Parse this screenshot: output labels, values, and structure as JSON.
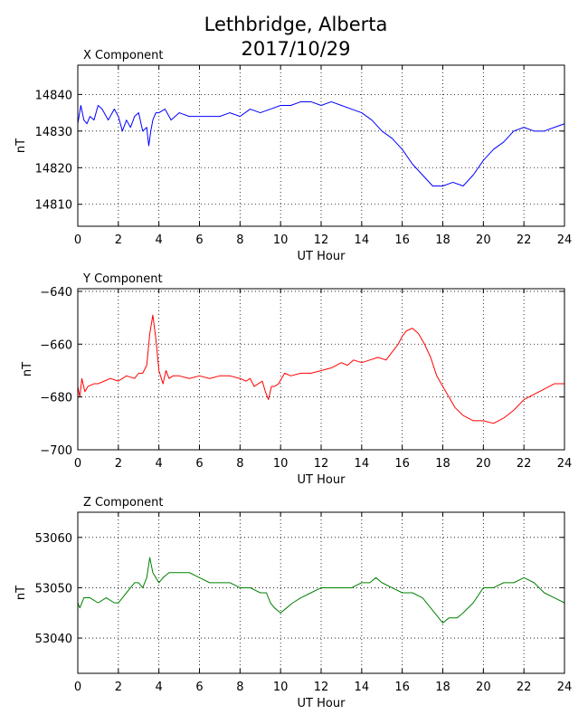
{
  "title_line1": "Lethbridge, Alberta",
  "title_line2": "2017/10/29",
  "chart_data": [
    {
      "type": "line",
      "title": "X Component",
      "xlabel": "UT Hour",
      "ylabel": "nT",
      "xlim": [
        0,
        24
      ],
      "ylim": [
        14804,
        14848
      ],
      "xticks": [
        0,
        2,
        4,
        6,
        8,
        10,
        12,
        14,
        16,
        18,
        20,
        22,
        24
      ],
      "yticks": [
        14810,
        14820,
        14830,
        14840
      ],
      "grid": true,
      "color": "#0000ff",
      "x": [
        0,
        0.15,
        0.3,
        0.45,
        0.6,
        0.8,
        1.0,
        1.2,
        1.5,
        1.8,
        2.0,
        2.2,
        2.4,
        2.6,
        2.8,
        3.0,
        3.2,
        3.4,
        3.5,
        3.6,
        3.7,
        3.85,
        4.0,
        4.3,
        4.6,
        5.0,
        5.5,
        6.0,
        6.5,
        7.0,
        7.5,
        8.0,
        8.5,
        9.0,
        9.5,
        10.0,
        10.5,
        11.0,
        11.5,
        12.0,
        12.5,
        13.0,
        13.5,
        14.0,
        14.5,
        15.0,
        15.5,
        16.0,
        16.5,
        17.0,
        17.5,
        18.0,
        18.5,
        19.0,
        19.5,
        20.0,
        20.5,
        21.0,
        21.5,
        22.0,
        22.5,
        23.0,
        23.5,
        24.0
      ],
      "y": [
        14832,
        14837,
        14833,
        14832,
        14834,
        14833,
        14837,
        14836,
        14833,
        14836,
        14834,
        14830,
        14833,
        14831,
        14834,
        14835,
        14830,
        14831,
        14826,
        14830,
        14833,
        14835,
        14835,
        14836,
        14833,
        14835,
        14834,
        14834,
        14834,
        14834,
        14835,
        14834,
        14836,
        14835,
        14836,
        14837,
        14837,
        14838,
        14838,
        14837,
        14838,
        14837,
        14836,
        14835,
        14833,
        14830,
        14828,
        14825,
        14821,
        14818,
        14815,
        14815,
        14816,
        14815,
        14818,
        14822,
        14825,
        14827,
        14830,
        14831,
        14830,
        14830,
        14831,
        14832
      ]
    },
    {
      "type": "line",
      "title": "Y Component",
      "xlabel": "UT Hour",
      "ylabel": "nT",
      "xlim": [
        0,
        24
      ],
      "ylim": [
        -700,
        -639
      ],
      "xticks": [
        0,
        2,
        4,
        6,
        8,
        10,
        12,
        14,
        16,
        18,
        20,
        22,
        24
      ],
      "yticks": [
        -640,
        -660,
        -680,
        -700
      ],
      "grid": true,
      "color": "#ff0000",
      "x": [
        0,
        0.1,
        0.2,
        0.35,
        0.5,
        0.8,
        1.0,
        1.3,
        1.6,
        2.0,
        2.4,
        2.8,
        3.0,
        3.2,
        3.4,
        3.55,
        3.7,
        3.85,
        4.0,
        4.2,
        4.35,
        4.5,
        4.7,
        5.0,
        5.5,
        6.0,
        6.5,
        7.0,
        7.5,
        8.0,
        8.3,
        8.5,
        8.7,
        8.9,
        9.1,
        9.25,
        9.4,
        9.55,
        9.7,
        9.9,
        10.2,
        10.5,
        11.0,
        11.5,
        12.0,
        12.5,
        13.0,
        13.3,
        13.6,
        14.0,
        14.4,
        14.8,
        15.2,
        15.5,
        15.8,
        16.0,
        16.2,
        16.5,
        16.8,
        17.1,
        17.4,
        17.7,
        18.0,
        18.3,
        18.6,
        19.0,
        19.5,
        20.0,
        20.5,
        21.0,
        21.5,
        22.0,
        22.5,
        23.0,
        23.5,
        24.0
      ],
      "y": [
        -676,
        -680,
        -673,
        -678,
        -676,
        -675,
        -675,
        -674,
        -673,
        -674,
        -672,
        -673,
        -671,
        -671,
        -668,
        -656,
        -649,
        -658,
        -670,
        -675,
        -670,
        -673,
        -672,
        -672,
        -673,
        -672,
        -673,
        -672,
        -672,
        -673,
        -674,
        -673,
        -676,
        -675,
        -674,
        -678,
        -681,
        -676,
        -676,
        -675,
        -671,
        -672,
        -671,
        -671,
        -670,
        -669,
        -667,
        -668,
        -666,
        -667,
        -666,
        -665,
        -666,
        -663,
        -660,
        -657,
        -655,
        -654,
        -656,
        -660,
        -665,
        -672,
        -676,
        -680,
        -684,
        -687,
        -689,
        -689,
        -690,
        -688,
        -685,
        -681,
        -679,
        -677,
        -675,
        -675
      ]
    },
    {
      "type": "line",
      "title": "Z Component",
      "xlabel": "UT Hour",
      "ylabel": "nT",
      "xlim": [
        0,
        24
      ],
      "ylim": [
        53033,
        53065
      ],
      "xticks": [
        0,
        2,
        4,
        6,
        8,
        10,
        12,
        14,
        16,
        18,
        20,
        22,
        24
      ],
      "yticks": [
        53040,
        53050,
        53060
      ],
      "grid": true,
      "color": "#008000",
      "x": [
        0,
        0.1,
        0.3,
        0.6,
        1.0,
        1.4,
        1.8,
        2.0,
        2.2,
        2.4,
        2.6,
        2.8,
        3.0,
        3.2,
        3.4,
        3.55,
        3.7,
        3.85,
        4.0,
        4.2,
        4.5,
        5.0,
        5.5,
        6.0,
        6.5,
        7.0,
        7.5,
        8.0,
        8.5,
        9.0,
        9.3,
        9.5,
        9.7,
        10.0,
        10.3,
        10.6,
        11.0,
        11.5,
        12.0,
        12.5,
        13.0,
        13.5,
        14.0,
        14.4,
        14.7,
        15.0,
        15.5,
        16.0,
        16.5,
        17.0,
        17.4,
        17.8,
        18.0,
        18.3,
        18.7,
        19.0,
        19.5,
        20.0,
        20.5,
        21.0,
        21.5,
        22.0,
        22.5,
        23.0,
        23.5,
        24.0
      ],
      "y": [
        53047,
        53046,
        53048,
        53048,
        53047,
        53048,
        53047,
        53047,
        53048,
        53049,
        53050,
        53051,
        53051,
        53050,
        53052,
        53056,
        53053,
        53052,
        53051,
        53052,
        53053,
        53053,
        53053,
        53052,
        53051,
        53051,
        53051,
        53050,
        53050,
        53049,
        53049,
        53047,
        53046,
        53045,
        53046,
        53047,
        53048,
        53049,
        53050,
        53050,
        53050,
        53050,
        53051,
        53051,
        53052,
        53051,
        53050,
        53049,
        53049,
        53048,
        53046,
        53044,
        53043,
        53044,
        53044,
        53045,
        53047,
        53050,
        53050,
        53051,
        53051,
        53052,
        53051,
        53049,
        53048,
        53047
      ]
    }
  ]
}
